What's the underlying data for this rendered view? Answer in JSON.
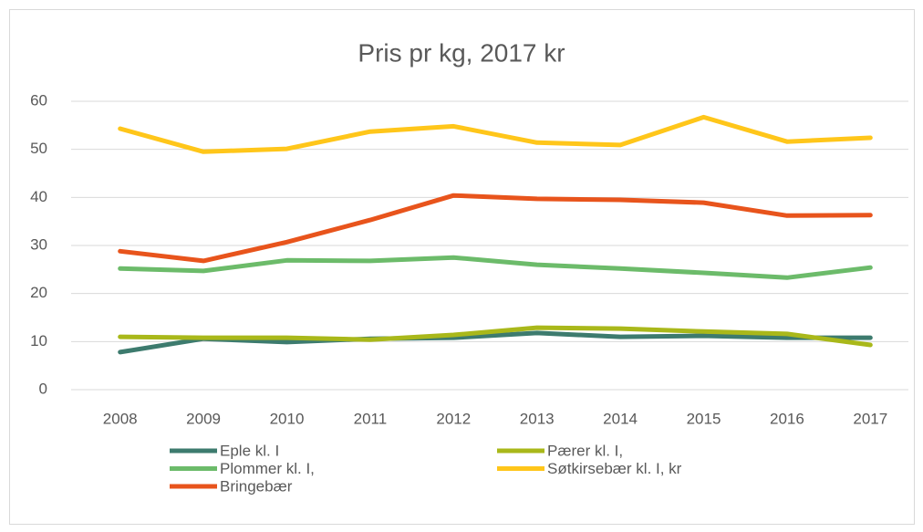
{
  "chart_data": {
    "type": "line",
    "title": "Pris pr kg, 2017 kr",
    "categories": [
      "2008",
      "2009",
      "2010",
      "2011",
      "2012",
      "2013",
      "2014",
      "2015",
      "2016",
      "2017"
    ],
    "series": [
      {
        "name": "Eple kl. I",
        "color": "#3d7b6e",
        "values": [
          7.8,
          10.6,
          9.9,
          10.6,
          10.8,
          11.8,
          11.0,
          11.2,
          10.8,
          10.8
        ]
      },
      {
        "name": "Pærer kl. I,",
        "color": "#a9b81a",
        "values": [
          11.0,
          10.8,
          10.8,
          10.4,
          11.4,
          12.9,
          12.7,
          12.1,
          11.6,
          9.3
        ]
      },
      {
        "name": "Plommer kl. I,",
        "color": "#6cbb6a",
        "values": [
          25.2,
          24.7,
          26.9,
          26.8,
          27.5,
          26.0,
          25.2,
          24.3,
          23.3,
          25.4
        ]
      },
      {
        "name": "Søtkirsebær kl. I, kr",
        "color": "#ffc61a",
        "values": [
          54.3,
          49.5,
          50.1,
          53.7,
          54.8,
          51.4,
          50.9,
          56.7,
          51.6,
          52.4
        ]
      },
      {
        "name": "Bringebær",
        "color": "#e8541c",
        "values": [
          28.8,
          26.8,
          30.7,
          35.3,
          40.4,
          39.7,
          39.5,
          38.9,
          36.2,
          36.3
        ]
      }
    ],
    "ylim": [
      0,
      60
    ],
    "yticks": [
      0,
      10,
      20,
      30,
      40,
      50,
      60
    ],
    "grid": true,
    "legend": "bottom"
  }
}
